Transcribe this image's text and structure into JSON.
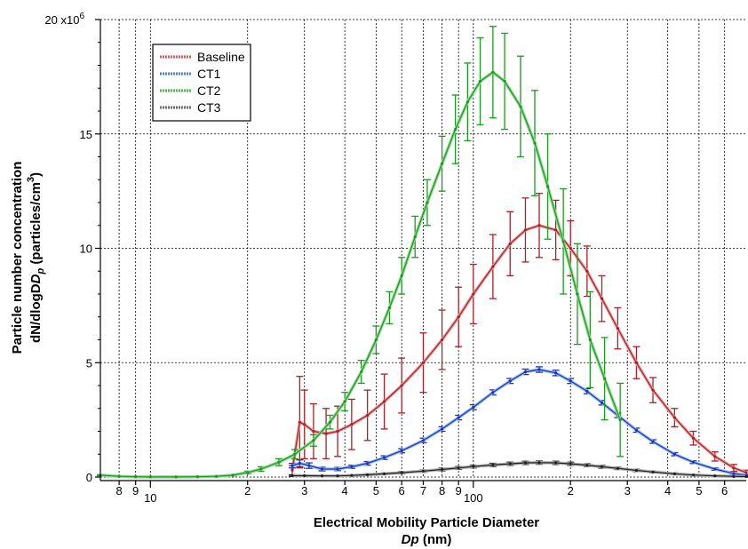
{
  "chart_data": {
    "type": "line",
    "x_scale": "log",
    "xlim": [
      7.0,
      700
    ],
    "ylim": [
      0,
      20000000
    ],
    "grid": true,
    "legend_position": "top-left",
    "xlabel_line1": "Electrical Mobility Particle Diameter",
    "xlabel_line2_var": "Dp",
    "xlabel_line2_unit": "(nm)",
    "ylabel_line1": "Particle number concentration",
    "ylabel_line2_a": "dN/dlogD",
    "ylabel_line2_sub": "p",
    "ylabel_line2_b": " (particles/cm",
    "ylabel_line2_sup": "3",
    "ylabel_line2_c": ")",
    "y_ticks": [
      {
        "value": 0,
        "label": "0"
      },
      {
        "value": 5000000,
        "label": "5"
      },
      {
        "value": 10000000,
        "label": "10"
      },
      {
        "value": 15000000,
        "label": "15"
      },
      {
        "value": 20000000,
        "label": "20 x10"
      }
    ],
    "y_multiplier_exponent": "6",
    "x_ticks": [
      {
        "value": 8,
        "label": "8"
      },
      {
        "value": 9,
        "label": "9"
      },
      {
        "value": 10,
        "label": "10"
      },
      {
        "value": 20,
        "label": "2"
      },
      {
        "value": 30,
        "label": "3"
      },
      {
        "value": 40,
        "label": "4"
      },
      {
        "value": 50,
        "label": "5"
      },
      {
        "value": 60,
        "label": "6"
      },
      {
        "value": 70,
        "label": "7"
      },
      {
        "value": 80,
        "label": "8"
      },
      {
        "value": 90,
        "label": "9"
      },
      {
        "value": 100,
        "label": "100"
      },
      {
        "value": 200,
        "label": "2"
      },
      {
        "value": 300,
        "label": "3"
      },
      {
        "value": 400,
        "label": "4"
      },
      {
        "value": 500,
        "label": "5"
      },
      {
        "value": 600,
        "label": "6"
      }
    ],
    "series": [
      {
        "name": "Baseline",
        "color": "#a82028",
        "fill_color": "#e8a0a0",
        "x": [
          27.5,
          29,
          30,
          32,
          35,
          38,
          42,
          47,
          53,
          60,
          70,
          80,
          90,
          100,
          115,
          130,
          145,
          160,
          180,
          200,
          225,
          250,
          280,
          320,
          360,
          420,
          480,
          560,
          640,
          700
        ],
        "y": [
          300000,
          2400000,
          2300000,
          2000000,
          1900000,
          2000000,
          2300000,
          2700000,
          3300000,
          4000000,
          5000000,
          6000000,
          7000000,
          8000000,
          9200000,
          10200000,
          10800000,
          11000000,
          10800000,
          10000000,
          9000000,
          7800000,
          6500000,
          5000000,
          3800000,
          2600000,
          1700000,
          900000,
          400000,
          200000
        ],
        "err": [
          200000,
          2000000,
          1500000,
          1200000,
          1100000,
          1100000,
          1100000,
          1100000,
          1200000,
          1200000,
          1300000,
          1300000,
          1300000,
          1300000,
          1400000,
          1400000,
          1400000,
          1400000,
          1300000,
          1200000,
          1100000,
          1000000,
          900000,
          700000,
          550000,
          400000,
          300000,
          200000,
          150000,
          100000
        ]
      },
      {
        "name": "CT1",
        "color": "#2030c0",
        "fill_color": "#90c0e8",
        "x": [
          27.5,
          29,
          31,
          34,
          38,
          42,
          47,
          53,
          60,
          70,
          80,
          90,
          100,
          115,
          130,
          145,
          160,
          180,
          200,
          225,
          250,
          280,
          320,
          360,
          420,
          480,
          560,
          640,
          700
        ],
        "y": [
          500000,
          600000,
          500000,
          350000,
          350000,
          450000,
          600000,
          850000,
          1150000,
          1600000,
          2100000,
          2600000,
          3050000,
          3700000,
          4200000,
          4600000,
          4700000,
          4550000,
          4200000,
          3750000,
          3250000,
          2700000,
          2050000,
          1550000,
          1000000,
          650000,
          350000,
          150000,
          80000
        ],
        "err": [
          100000,
          150000,
          120000,
          80000,
          70000,
          70000,
          80000,
          80000,
          90000,
          100000,
          100000,
          100000,
          110000,
          110000,
          110000,
          120000,
          120000,
          120000,
          110000,
          110000,
          100000,
          100000,
          90000,
          80000,
          70000,
          60000,
          50000,
          40000,
          30000
        ]
      },
      {
        "name": "CT2",
        "color": "#1a9a20",
        "fill_color": "#90d890",
        "x": [
          7.0,
          8,
          9,
          10,
          12,
          14,
          16,
          18,
          20,
          22,
          25,
          28,
          32,
          36,
          40,
          45,
          50,
          55,
          60,
          66,
          72,
          80,
          88,
          96,
          105,
          115,
          125,
          140,
          155,
          170,
          190,
          210,
          230,
          255,
          285
        ],
        "y": [
          80000,
          30000,
          10000,
          5000,
          5000,
          10000,
          30000,
          80000,
          200000,
          350000,
          650000,
          1000000,
          1600000,
          2400000,
          3300000,
          4600000,
          6000000,
          7400000,
          8800000,
          10500000,
          12000000,
          13700000,
          15200000,
          16400000,
          17300000,
          17700000,
          17300000,
          16200000,
          14600000,
          12700000,
          10300000,
          8000000,
          6000000,
          4300000,
          2500000
        ],
        "err": [
          20000,
          10000,
          5000,
          3000,
          3000,
          5000,
          10000,
          30000,
          60000,
          100000,
          150000,
          200000,
          250000,
          300000,
          400000,
          500000,
          600000,
          700000,
          800000,
          900000,
          1000000,
          1200000,
          1500000,
          1700000,
          1900000,
          2000000,
          2100000,
          2200000,
          2300000,
          2300000,
          2300000,
          2200000,
          2100000,
          1800000,
          1600000
        ]
      },
      {
        "name": "CT3",
        "color": "#202020",
        "fill_color": "#b0b0b0",
        "x": [
          27.5,
          30,
          34,
          38,
          42,
          47,
          53,
          60,
          70,
          80,
          90,
          100,
          115,
          130,
          145,
          160,
          180,
          200,
          225,
          250,
          280,
          320,
          360,
          420,
          480,
          560,
          640,
          700
        ],
        "y": [
          60000,
          60000,
          50000,
          50000,
          70000,
          100000,
          140000,
          190000,
          260000,
          330000,
          400000,
          460000,
          530000,
          580000,
          620000,
          630000,
          620000,
          580000,
          520000,
          450000,
          380000,
          290000,
          220000,
          140000,
          90000,
          50000,
          30000,
          20000
        ],
        "err": [
          30000,
          30000,
          30000,
          30000,
          30000,
          40000,
          40000,
          50000,
          50000,
          60000,
          60000,
          60000,
          70000,
          70000,
          70000,
          70000,
          70000,
          70000,
          60000,
          60000,
          50000,
          50000,
          40000,
          40000,
          30000,
          30000,
          20000,
          20000
        ]
      }
    ]
  }
}
